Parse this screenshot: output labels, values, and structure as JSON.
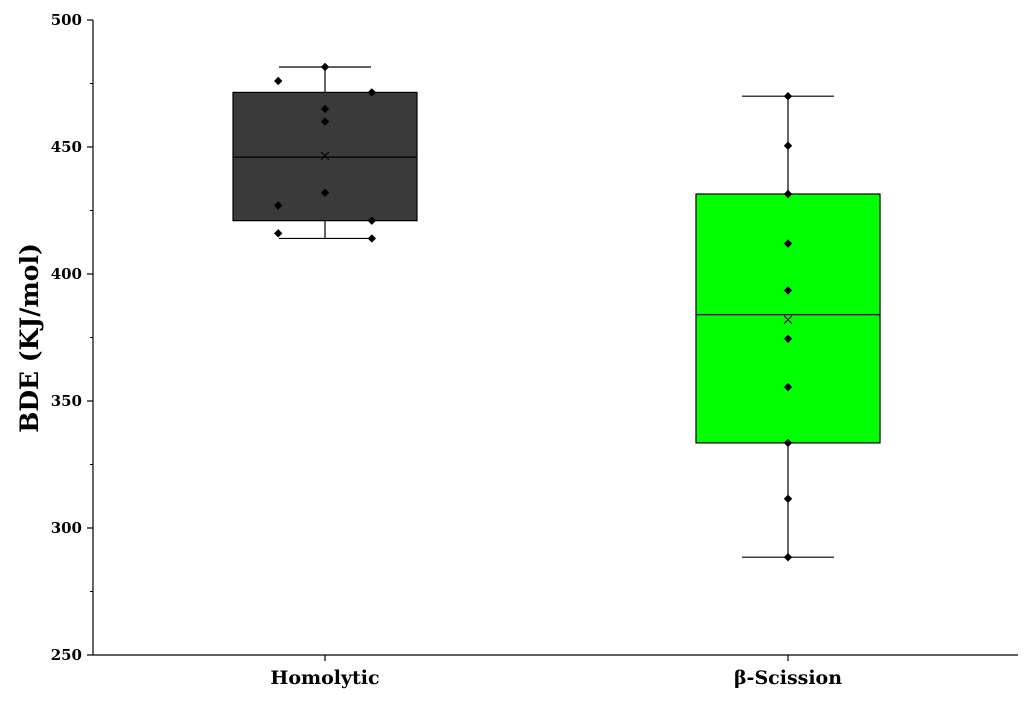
{
  "chart_data": {
    "type": "box",
    "title": "",
    "xlabel": "",
    "ylabel": "BDE (KJ/mol)",
    "ylim": [
      250,
      500
    ],
    "yticks": [
      250,
      300,
      350,
      400,
      450,
      500
    ],
    "categories": [
      "Homolytic",
      "β-Scission"
    ],
    "boxes": [
      {
        "category": "Homolytic",
        "color": "#3a3a3a",
        "whisker_low": 414,
        "q1": 421,
        "median": 446,
        "mean": 446.5,
        "q3": 471.5,
        "whisker_high": 481.5,
        "points": [
          {
            "offset": -0.45,
            "value": 476
          },
          {
            "offset": -0.45,
            "value": 427
          },
          {
            "offset": -0.45,
            "value": 416
          },
          {
            "offset": 0.0,
            "value": 481.5
          },
          {
            "offset": 0.0,
            "value": 465
          },
          {
            "offset": 0.0,
            "value": 460
          },
          {
            "offset": 0.0,
            "value": 432
          },
          {
            "offset": 0.45,
            "value": 471.5
          },
          {
            "offset": 0.45,
            "value": 421
          },
          {
            "offset": 0.45,
            "value": 414
          }
        ]
      },
      {
        "category": "β-Scission",
        "color": "#00ff00",
        "whisker_low": 288.5,
        "q1": 333.5,
        "median": 384,
        "mean": 382,
        "q3": 431.5,
        "whisker_high": 470,
        "points": [
          {
            "offset": 0.0,
            "value": 470
          },
          {
            "offset": 0.0,
            "value": 450.5
          },
          {
            "offset": 0.0,
            "value": 431.5
          },
          {
            "offset": 0.0,
            "value": 412
          },
          {
            "offset": 0.0,
            "value": 393.5
          },
          {
            "offset": 0.0,
            "value": 374.5
          },
          {
            "offset": 0.0,
            "value": 355.5
          },
          {
            "offset": 0.0,
            "value": 333.5
          },
          {
            "offset": 0.0,
            "value": 311.5
          },
          {
            "offset": 0.0,
            "value": 288.5
          }
        ]
      }
    ]
  }
}
